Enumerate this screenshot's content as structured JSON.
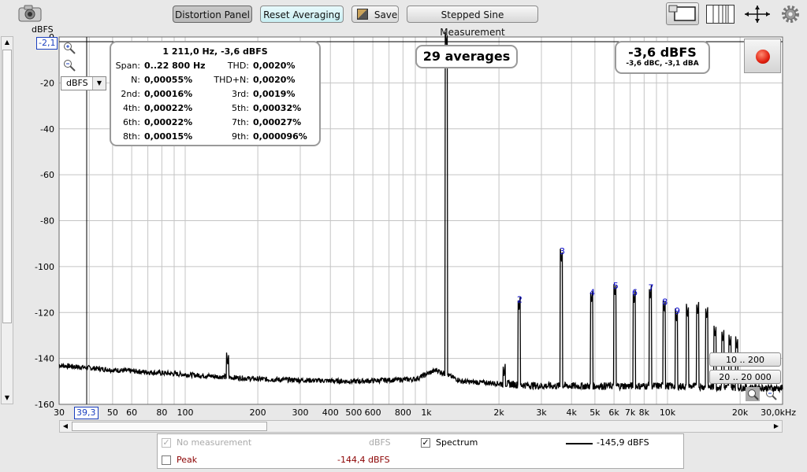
{
  "toolbar": {
    "distortion_panel": "Distortion Panel",
    "reset_averaging": "Reset Averaging",
    "save": "Save",
    "stepped_sine": "Stepped Sine Measurement"
  },
  "graph": {
    "y_unit": "dBFS",
    "y_unit_select": "dBFS",
    "cursor_y_readout": "-2,1",
    "cursor_x_readout": "39,3",
    "averages_text": "29 averages",
    "level_main": "-3,6 dBFS",
    "level_sub": "-3,6 dBC, -3,1 dBA",
    "zoom_buttons": [
      "10 .. 200",
      "20 .. 20 000"
    ],
    "y_ticks": [
      "0",
      "-20",
      "-40",
      "-60",
      "-80",
      "-100",
      "-120",
      "-140",
      "-160"
    ],
    "x_ticks": [
      "30",
      "50",
      "60",
      "80",
      "100",
      "200",
      "300",
      "400",
      "500",
      "600",
      "800",
      "1k",
      "2k",
      "3k",
      "4k",
      "5k",
      "6k",
      "7k",
      "8k",
      "10k",
      "20k",
      "30,0kHz"
    ],
    "harmonic_labels": [
      "2",
      "3",
      "4",
      "5",
      "6",
      "7",
      "8",
      "9"
    ]
  },
  "distortion": {
    "header": "1 211,0 Hz, -3,6 dBFS",
    "span_label": "Span:",
    "span_value": "0..22 800 Hz",
    "thd_label": "THD:",
    "thd_value": "0,0020%",
    "n_label": "N:",
    "n_value": "0,00055%",
    "thdn_label": "THD+N:",
    "thdn_value": "0,0020%",
    "h2_label": "2nd:",
    "h2_value": "0,00016%",
    "h3_label": "3rd:",
    "h3_value": "0,0019%",
    "h4_label": "4th:",
    "h4_value": "0,00022%",
    "h5_label": "5th:",
    "h5_value": "0,00032%",
    "h6_label": "6th:",
    "h6_value": "0,00022%",
    "h7_label": "7th:",
    "h7_value": "0,00027%",
    "h8_label": "8th:",
    "h8_value": "0,00015%",
    "h9_label": "9th:",
    "h9_value": "0,000096%"
  },
  "legend": {
    "no_measurement": "No measurement",
    "no_measurement_unit": "dBFS",
    "spectrum": "Spectrum",
    "spectrum_value": "-145,9 dBFS",
    "peak": "Peak",
    "peak_value": "-144,4 dBFS"
  },
  "colors": {
    "peak_text": "#8b0000",
    "harmonic_label": "#0000cc",
    "record_button": "#e02010"
  },
  "chart_data": {
    "type": "line",
    "title": "",
    "xlabel": "",
    "ylabel": "dBFS",
    "x_scale": "log",
    "xlim": [
      30,
      30000
    ],
    "ylim": [
      -160,
      0
    ],
    "grid": true,
    "fundamental": {
      "freq_hz": 1211,
      "level_dbfs": -3.6
    },
    "harmonics": [
      {
        "label": "2",
        "freq_hz": 2422,
        "level_dbfs": -119
      },
      {
        "label": "3",
        "freq_hz": 3633,
        "level_dbfs": -98
      },
      {
        "label": "4",
        "freq_hz": 4844,
        "level_dbfs": -116
      },
      {
        "label": "5",
        "freq_hz": 6055,
        "level_dbfs": -113
      },
      {
        "label": "6",
        "freq_hz": 7266,
        "level_dbfs": -116
      },
      {
        "label": "7",
        "freq_hz": 8477,
        "level_dbfs": -114
      },
      {
        "label": "8",
        "freq_hz": 9688,
        "level_dbfs": -120
      },
      {
        "label": "9",
        "freq_hz": 10899,
        "level_dbfs": -124
      }
    ],
    "extra_peaks": [
      {
        "freq_hz": 12110,
        "level_dbfs": -122
      },
      {
        "freq_hz": 13321,
        "level_dbfs": -121
      },
      {
        "freq_hz": 14532,
        "level_dbfs": -123
      },
      {
        "freq_hz": 15743,
        "level_dbfs": -131
      },
      {
        "freq_hz": 16954,
        "level_dbfs": -133
      },
      {
        "freq_hz": 18165,
        "level_dbfs": -135
      },
      {
        "freq_hz": 19376,
        "level_dbfs": -136
      },
      {
        "freq_hz": 150,
        "level_dbfs": -143
      },
      {
        "freq_hz": 2100,
        "level_dbfs": -148
      }
    ],
    "noise_floor": [
      {
        "freq_hz": 30,
        "level_dbfs": -143
      },
      {
        "freq_hz": 50,
        "level_dbfs": -145
      },
      {
        "freq_hz": 100,
        "level_dbfs": -147
      },
      {
        "freq_hz": 200,
        "level_dbfs": -149
      },
      {
        "freq_hz": 500,
        "level_dbfs": -150
      },
      {
        "freq_hz": 900,
        "level_dbfs": -149
      },
      {
        "freq_hz": 1100,
        "level_dbfs": -145
      },
      {
        "freq_hz": 1400,
        "level_dbfs": -150
      },
      {
        "freq_hz": 3000,
        "level_dbfs": -152
      },
      {
        "freq_hz": 10000,
        "level_dbfs": -152
      },
      {
        "freq_hz": 30000,
        "level_dbfs": -153
      }
    ]
  }
}
